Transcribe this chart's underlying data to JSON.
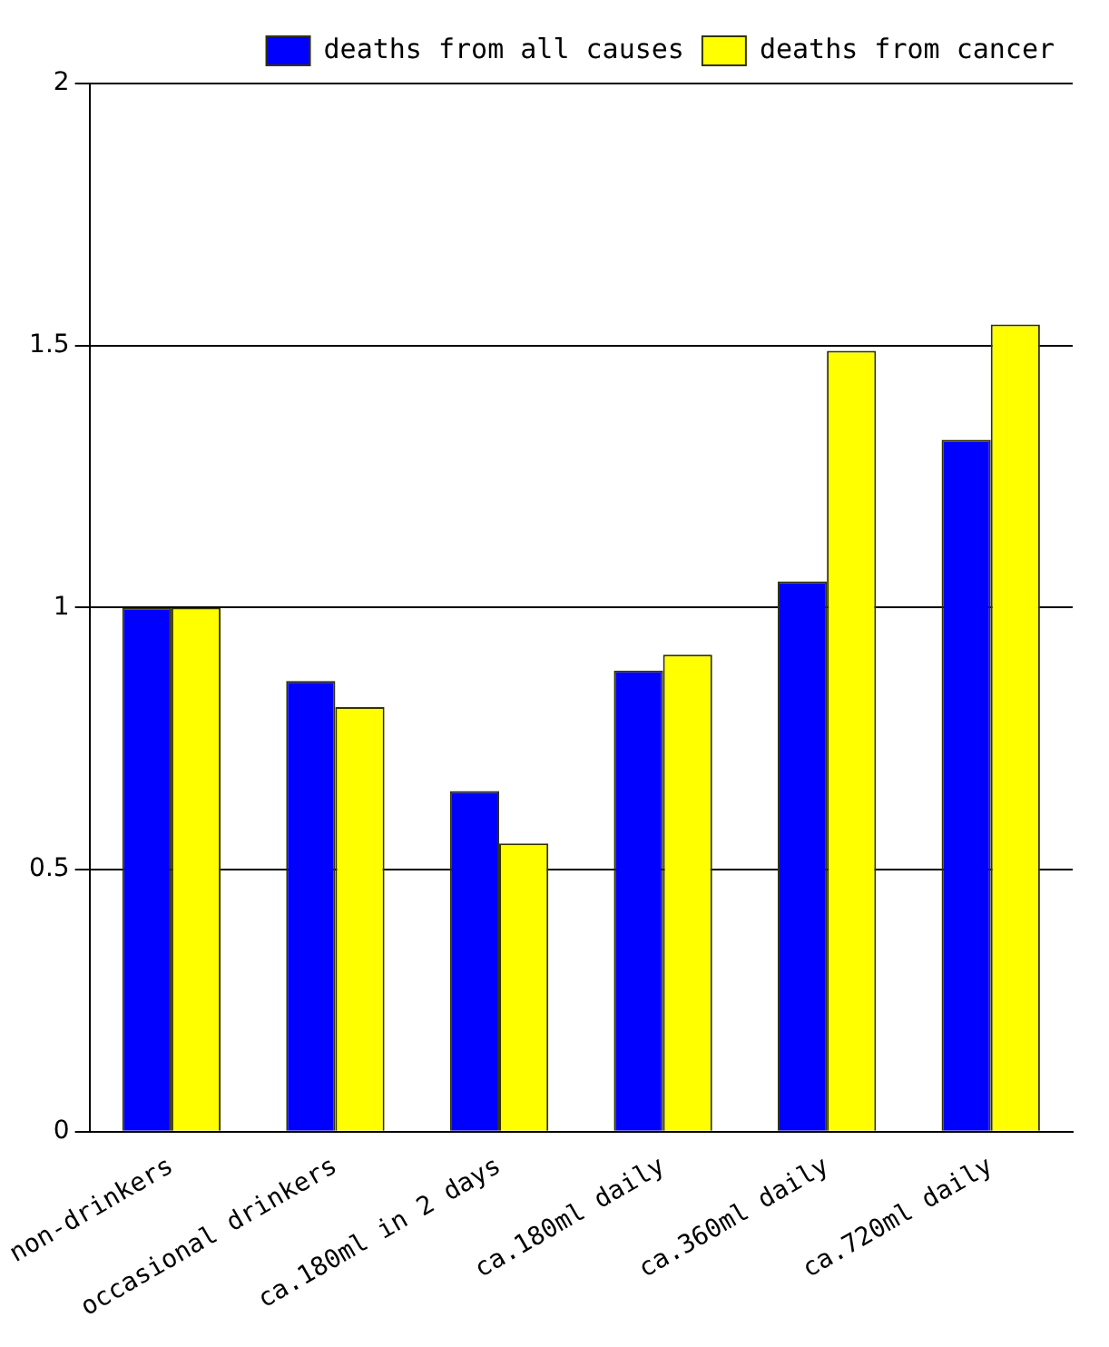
{
  "chart_data": {
    "type": "bar",
    "categories": [
      "non-drinkers",
      "occasional drinkers",
      "ca.180ml in 2 days",
      "ca.180ml daily",
      "ca.360ml daily",
      "ca.720ml daily"
    ],
    "series": [
      {
        "name": "deaths from all causes",
        "color": "#0000ff",
        "values": [
          1.0,
          0.86,
          0.65,
          0.88,
          1.05,
          1.32
        ]
      },
      {
        "name": "deaths from cancer",
        "color": "#ffff00",
        "values": [
          1.0,
          0.81,
          0.55,
          0.91,
          1.49,
          1.54
        ]
      }
    ],
    "ylim": [
      0,
      2
    ],
    "yticks": [
      0,
      0.5,
      1,
      1.5,
      2
    ],
    "grid": "y",
    "legend": "top right"
  }
}
